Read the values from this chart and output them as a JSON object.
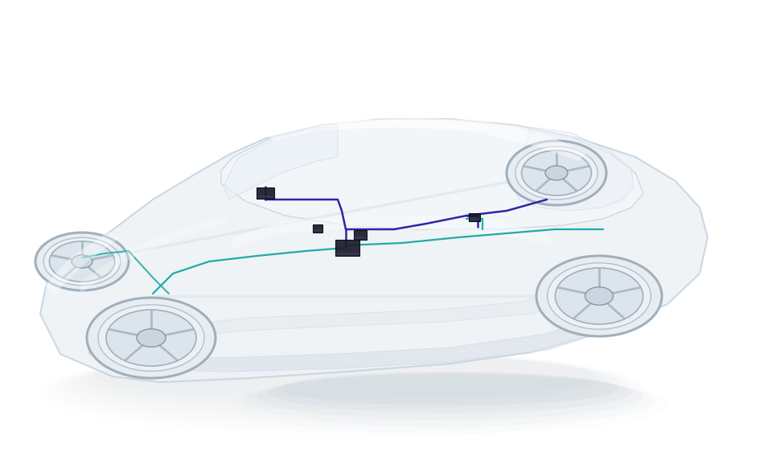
{
  "background_color": "#ffffff",
  "fig_width": 9.6,
  "fig_height": 5.73,
  "dpi": 100,
  "wire_purple": "#3322aa",
  "wire_teal": "#22aaaa",
  "car_fill": "#eef2f6",
  "car_edge": "#c8d4de",
  "car_inner": "#f4f7fa",
  "wheel_fill": "#e0e6ec",
  "wheel_edge": "#b0bcc8",
  "hub_fill": "#d0d8e2",
  "spoke_color": "#c0ccd8",
  "shadow_color": "#c8d0d8",
  "component_dark": "#1a1a2a",
  "glass_fill": "#eaf0f8",
  "underbody_fill": "#dde4ec",
  "chassis_color": "#d0dae4"
}
